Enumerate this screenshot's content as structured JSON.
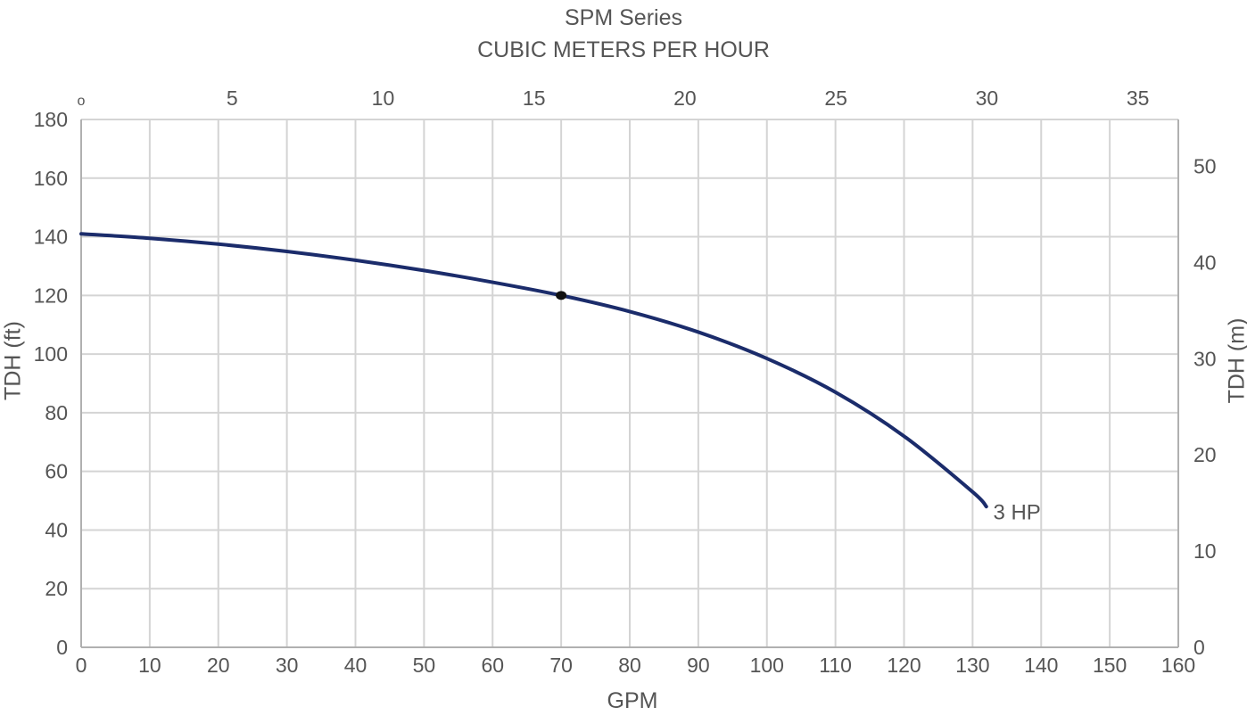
{
  "chart_data": {
    "type": "line",
    "title": "SPM Series",
    "subtitle": "CUBIC METERS PER HOUR",
    "xlabel": "GPM",
    "ylabel": "TDH (ft)",
    "ylabel_right": "TDH (m)",
    "xlim": [
      0,
      160
    ],
    "ylim": [
      0,
      180
    ],
    "x_ticks": [
      0,
      10,
      20,
      30,
      40,
      50,
      60,
      70,
      80,
      90,
      100,
      110,
      120,
      130,
      140,
      150,
      160
    ],
    "y_ticks": [
      0,
      20,
      40,
      60,
      80,
      100,
      120,
      140,
      160,
      180
    ],
    "top_axis_ticks": [
      "o",
      "5",
      "10",
      "15",
      "20",
      "25",
      "30",
      "35"
    ],
    "top_axis_range": [
      0,
      36.34
    ],
    "right_axis_ticks": [
      "0",
      "10",
      "20",
      "30",
      "40",
      "50"
    ],
    "right_axis_range": [
      0,
      54.86
    ],
    "grid": true,
    "series": [
      {
        "name": "3 HP",
        "color": "#1b2c6b",
        "x": [
          0,
          10,
          20,
          30,
          40,
          50,
          60,
          70,
          80,
          90,
          100,
          110,
          120,
          130,
          132
        ],
        "y": [
          141,
          139.5,
          137.5,
          135,
          132,
          128.5,
          124.5,
          120,
          114.5,
          107.5,
          98.5,
          87,
          72,
          53,
          48
        ]
      }
    ],
    "annotations": [
      {
        "text": "3 HP",
        "x": 133,
        "y": 46
      }
    ],
    "markers": [
      {
        "x": 70,
        "y": 120
      }
    ]
  }
}
